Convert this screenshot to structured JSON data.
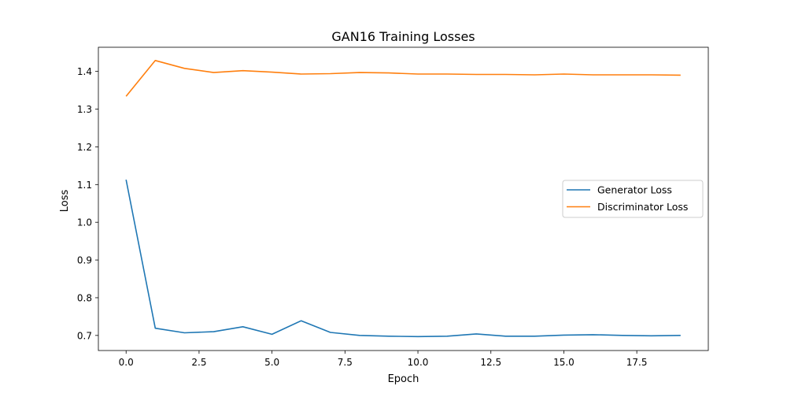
{
  "chart_data": {
    "type": "line",
    "title": "GAN16 Training Losses",
    "xlabel": "Epoch",
    "ylabel": "Loss",
    "xlim": [
      -0.95,
      19.95
    ],
    "ylim": [
      0.66,
      1.464
    ],
    "xticks": [
      0.0,
      2.5,
      5.0,
      7.5,
      10.0,
      12.5,
      15.0,
      17.5
    ],
    "xtick_labels": [
      "0.0",
      "2.5",
      "5.0",
      "7.5",
      "10.0",
      "12.5",
      "15.0",
      "17.5"
    ],
    "yticks": [
      0.7,
      0.8,
      0.9,
      1.0,
      1.1,
      1.2,
      1.3,
      1.4
    ],
    "ytick_labels": [
      "0.7",
      "0.8",
      "0.9",
      "1.0",
      "1.1",
      "1.2",
      "1.3",
      "1.4"
    ],
    "grid": false,
    "legend_position": "center-right",
    "x": [
      0,
      1,
      2,
      3,
      4,
      5,
      6,
      7,
      8,
      9,
      10,
      11,
      12,
      13,
      14,
      15,
      16,
      17,
      18,
      19
    ],
    "series": [
      {
        "name": "Generator Loss",
        "color": "#1f77b4",
        "values": [
          1.113,
          0.719,
          0.707,
          0.71,
          0.723,
          0.703,
          0.739,
          0.708,
          0.7,
          0.698,
          0.697,
          0.698,
          0.704,
          0.698,
          0.698,
          0.701,
          0.702,
          0.7,
          0.699,
          0.7
        ]
      },
      {
        "name": "Discriminator Loss",
        "color": "#ff7f0e",
        "values": [
          1.334,
          1.429,
          1.408,
          1.397,
          1.402,
          1.398,
          1.393,
          1.394,
          1.397,
          1.396,
          1.393,
          1.393,
          1.392,
          1.392,
          1.391,
          1.393,
          1.391,
          1.391,
          1.391,
          1.39
        ]
      }
    ]
  }
}
